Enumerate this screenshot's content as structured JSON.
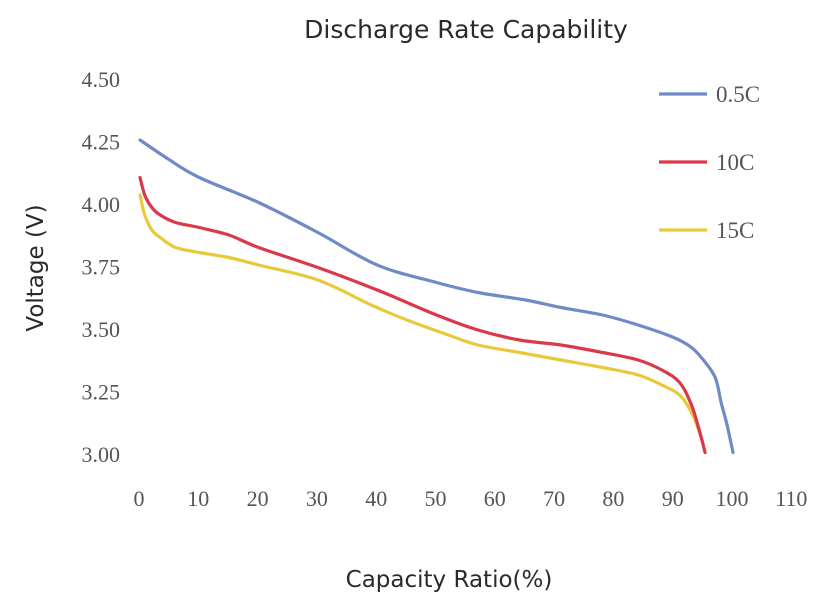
{
  "chart_data": {
    "type": "line",
    "title": "Discharge Rate Capability",
    "xlabel": "Capacity Ratio(%)",
    "ylabel": "Voltage  (V)",
    "xlim": [
      0,
      110
    ],
    "ylim": [
      3.0,
      4.5
    ],
    "x_ticks": [
      "0",
      "10",
      "20",
      "30",
      "40",
      "50",
      "60",
      "70",
      "80",
      "90",
      "100",
      "110"
    ],
    "x_tick_values": [
      0,
      10,
      20,
      30,
      40,
      50,
      60,
      70,
      80,
      90,
      100,
      110
    ],
    "y_ticks": [
      "3.00",
      "3.25",
      "3.50",
      "3.75",
      "4.00",
      "4.25",
      "4.50"
    ],
    "y_tick_values": [
      3.0,
      3.25,
      3.5,
      3.75,
      4.0,
      4.25,
      4.5
    ],
    "grid": false,
    "legend_position": "top-right",
    "series": [
      {
        "name": "0.5C",
        "color": "#6f8bc6",
        "x": [
          0,
          5,
          10,
          20,
          30,
          40,
          50,
          57,
          65,
          71,
          78,
          84,
          90,
          93,
          95,
          97,
          98,
          99,
          100
        ],
        "y": [
          4.26,
          4.18,
          4.11,
          4.01,
          3.89,
          3.76,
          3.69,
          3.65,
          3.62,
          3.59,
          3.56,
          3.52,
          3.47,
          3.43,
          3.38,
          3.31,
          3.21,
          3.12,
          3.01
        ]
      },
      {
        "name": "10C",
        "color": "#d9394a",
        "x": [
          0,
          0.8,
          2,
          3.4,
          6,
          10,
          15,
          20,
          30,
          40,
          50,
          57,
          64,
          71,
          78,
          84,
          88,
          91,
          93,
          94.3,
          95.3
        ],
        "y": [
          4.11,
          4.04,
          3.99,
          3.96,
          3.93,
          3.91,
          3.88,
          3.83,
          3.75,
          3.66,
          3.56,
          3.5,
          3.46,
          3.44,
          3.41,
          3.38,
          3.34,
          3.29,
          3.2,
          3.1,
          3.01
        ]
      },
      {
        "name": "15C",
        "color": "#e8c93a",
        "x": [
          0,
          0.8,
          2,
          3.4,
          6,
          10,
          15,
          20,
          30,
          39,
          45,
          52,
          57,
          64,
          71,
          78,
          84,
          88,
          91,
          93,
          94.5,
          95.3
        ],
        "y": [
          4.04,
          3.96,
          3.9,
          3.87,
          3.83,
          3.81,
          3.79,
          3.76,
          3.7,
          3.6,
          3.54,
          3.48,
          3.44,
          3.41,
          3.38,
          3.35,
          3.32,
          3.28,
          3.24,
          3.17,
          3.08,
          3.01
        ]
      }
    ]
  }
}
